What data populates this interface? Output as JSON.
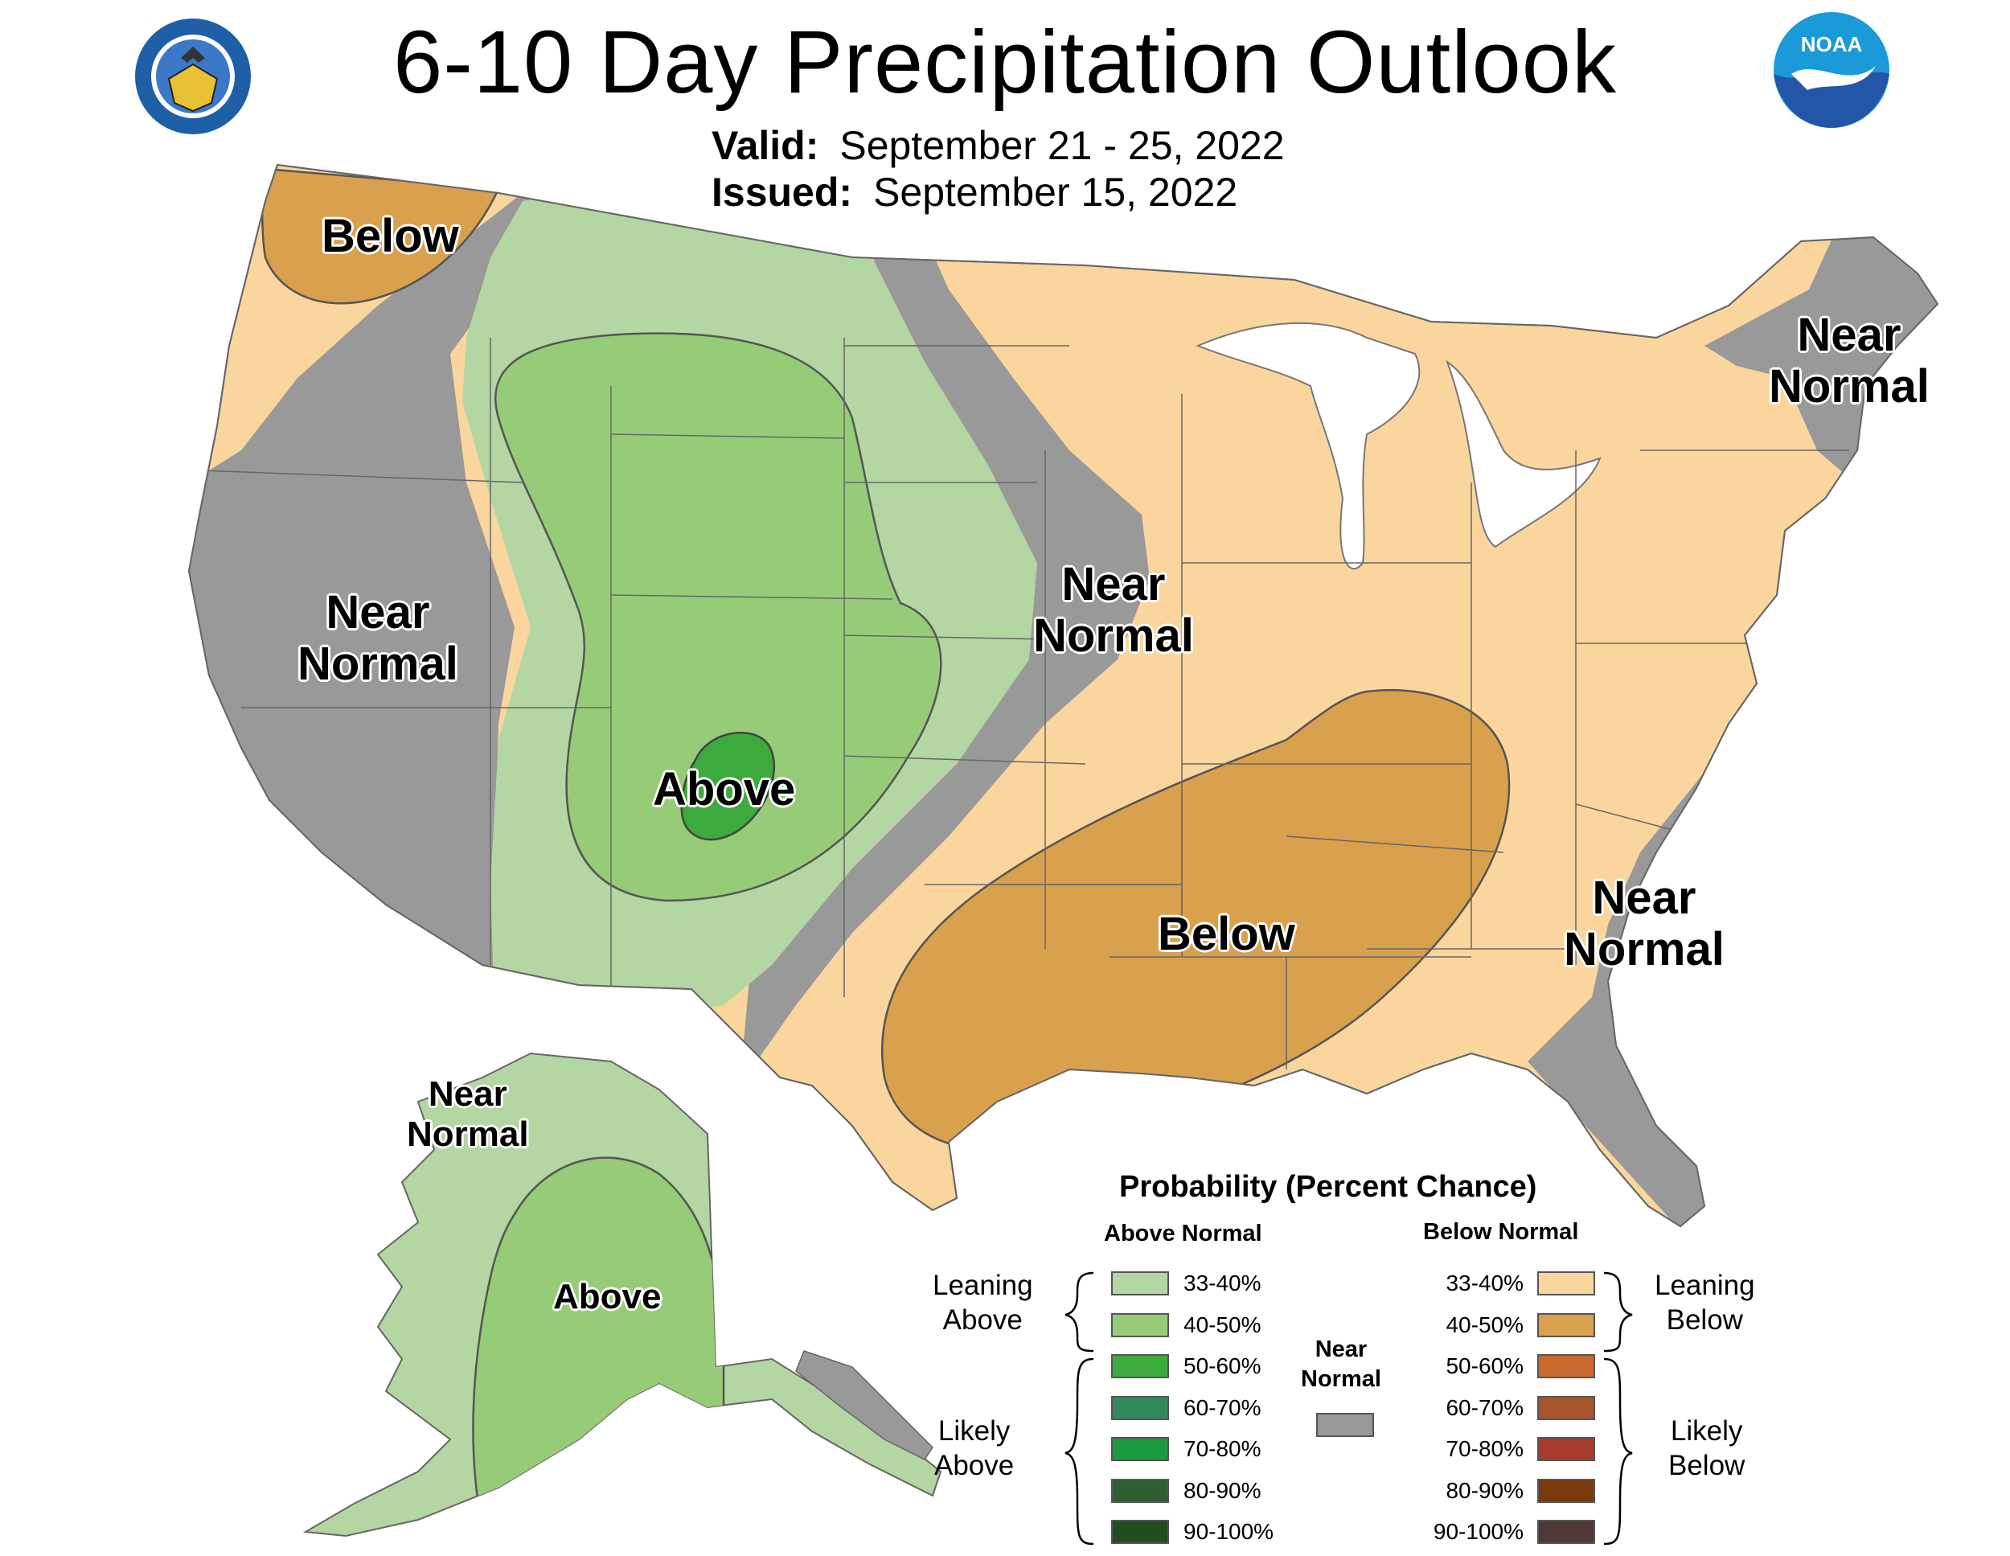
{
  "header": {
    "title": "6-10 Day Precipitation Outlook",
    "valid_label": "Valid:",
    "valid_value": "September 21 - 25, 2022",
    "issued_label": "Issued:",
    "issued_value": "September 15, 2022"
  },
  "logos": {
    "commerce_seal": "department-of-commerce-seal",
    "noaa": "NOAA"
  },
  "regions": {
    "pacific_nw": "Below",
    "west_coast": "Near\nNormal",
    "rockies": "Above",
    "plains": "Near\nNormal",
    "south": "Below",
    "northeast": "Near\nNormal",
    "southeast": "Near\nNormal",
    "alaska_nw": "Near\nNormal",
    "alaska": "Above"
  },
  "legend": {
    "title": "Probability (Percent Chance)",
    "above_header": "Above Normal",
    "below_header": "Below Normal",
    "near_header": "Near\nNormal",
    "leaning_above": "Leaning\nAbove",
    "likely_above": "Likely\nAbove",
    "leaning_below": "Leaning\nBelow",
    "likely_below": "Likely\nBelow",
    "above": [
      {
        "label": "33-40%",
        "color": "#b3d6a3"
      },
      {
        "label": "40-50%",
        "color": "#96cc78"
      },
      {
        "label": "50-60%",
        "color": "#3caa3c"
      },
      {
        "label": "60-70%",
        "color": "#2e8a5e"
      },
      {
        "label": "70-80%",
        "color": "#1a9a3e"
      },
      {
        "label": "80-90%",
        "color": "#2f5e32"
      },
      {
        "label": "90-100%",
        "color": "#224d1e"
      }
    ],
    "below": [
      {
        "label": "33-40%",
        "color": "#fbd59e"
      },
      {
        "label": "40-50%",
        "color": "#d9a04e"
      },
      {
        "label": "50-60%",
        "color": "#c8692e"
      },
      {
        "label": "60-70%",
        "color": "#a6552e"
      },
      {
        "label": "70-80%",
        "color": "#a63b2e"
      },
      {
        "label": "80-90%",
        "color": "#7b3a0e"
      },
      {
        "label": "90-100%",
        "color": "#4e3836"
      }
    ],
    "near_color": "#999999"
  },
  "colors": {
    "near_normal": "#999999",
    "above_33_40": "#b3d6a3",
    "above_40_50": "#96cc78",
    "above_50_60": "#3caa3c",
    "below_33_40": "#fbd59e",
    "below_40_50": "#d9a04e",
    "lakes": "#ffffff"
  }
}
